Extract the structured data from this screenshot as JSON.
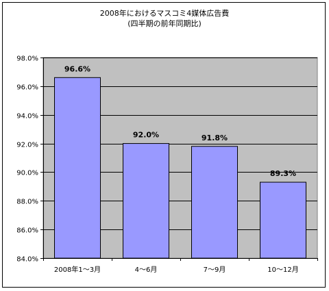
{
  "chart_data": {
    "type": "bar",
    "title": "2008年におけるマスコミ4媒体広告費",
    "subtitle": "(四半期の前年同期比)",
    "categories": [
      "2008年1～3月",
      "4～6月",
      "7～9月",
      "10～12月"
    ],
    "values": [
      96.6,
      92.0,
      91.8,
      89.3
    ],
    "data_labels": [
      "96.6%",
      "92.0%",
      "91.8%",
      "89.3%"
    ],
    "ylim": [
      84.0,
      98.0
    ],
    "y_ticks": [
      84.0,
      86.0,
      88.0,
      90.0,
      92.0,
      94.0,
      96.0,
      98.0
    ],
    "y_tick_labels": [
      "84.0%",
      "86.0%",
      "88.0%",
      "90.0%",
      "92.0%",
      "94.0%",
      "96.0%",
      "98.0%"
    ],
    "grid": true,
    "legend": "none",
    "colors": {
      "bar": "#9999ff",
      "plot_background": "#c0c0c0",
      "gridline": "#000000"
    }
  }
}
